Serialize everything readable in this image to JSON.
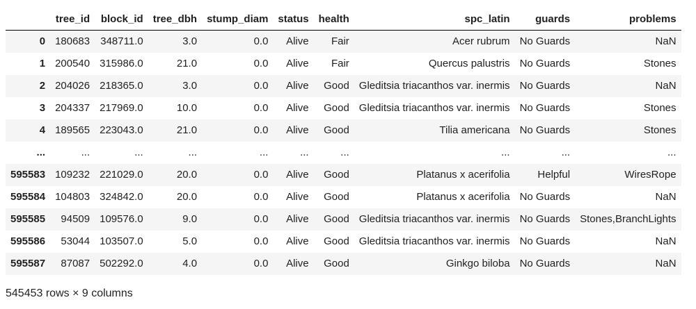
{
  "table": {
    "columns": [
      "",
      "tree_id",
      "block_id",
      "tree_dbh",
      "stump_diam",
      "status",
      "health",
      "spc_latin",
      "guards",
      "problems"
    ],
    "rows": [
      {
        "index": "0",
        "cells": [
          "180683",
          "348711.0",
          "3.0",
          "0.0",
          "Alive",
          "Fair",
          "Acer rubrum",
          "No Guards",
          "NaN"
        ]
      },
      {
        "index": "1",
        "cells": [
          "200540",
          "315986.0",
          "21.0",
          "0.0",
          "Alive",
          "Fair",
          "Quercus palustris",
          "No Guards",
          "Stones"
        ]
      },
      {
        "index": "2",
        "cells": [
          "204026",
          "218365.0",
          "3.0",
          "0.0",
          "Alive",
          "Good",
          "Gleditsia triacanthos var. inermis",
          "No Guards",
          "NaN"
        ]
      },
      {
        "index": "3",
        "cells": [
          "204337",
          "217969.0",
          "10.0",
          "0.0",
          "Alive",
          "Good",
          "Gleditsia triacanthos var. inermis",
          "No Guards",
          "Stones"
        ]
      },
      {
        "index": "4",
        "cells": [
          "189565",
          "223043.0",
          "21.0",
          "0.0",
          "Alive",
          "Good",
          "Tilia americana",
          "No Guards",
          "Stones"
        ]
      },
      {
        "index": "...",
        "cells": [
          "...",
          "...",
          "...",
          "...",
          "...",
          "...",
          "...",
          "...",
          "..."
        ]
      },
      {
        "index": "595583",
        "cells": [
          "109232",
          "221029.0",
          "20.0",
          "0.0",
          "Alive",
          "Good",
          "Platanus x acerifolia",
          "Helpful",
          "WiresRope"
        ]
      },
      {
        "index": "595584",
        "cells": [
          "104803",
          "324842.0",
          "20.0",
          "0.0",
          "Alive",
          "Good",
          "Platanus x acerifolia",
          "No Guards",
          "NaN"
        ]
      },
      {
        "index": "595585",
        "cells": [
          "94509",
          "109576.0",
          "9.0",
          "0.0",
          "Alive",
          "Good",
          "Gleditsia triacanthos var. inermis",
          "No Guards",
          "Stones,BranchLights"
        ]
      },
      {
        "index": "595586",
        "cells": [
          "53044",
          "103507.0",
          "5.0",
          "0.0",
          "Alive",
          "Good",
          "Gleditsia triacanthos var. inermis",
          "No Guards",
          "NaN"
        ]
      },
      {
        "index": "595587",
        "cells": [
          "87087",
          "502292.0",
          "4.0",
          "0.0",
          "Alive",
          "Good",
          "Ginkgo biloba",
          "No Guards",
          "NaN"
        ]
      }
    ]
  },
  "footer": {
    "shape_text": "545453 rows × 9 columns"
  }
}
